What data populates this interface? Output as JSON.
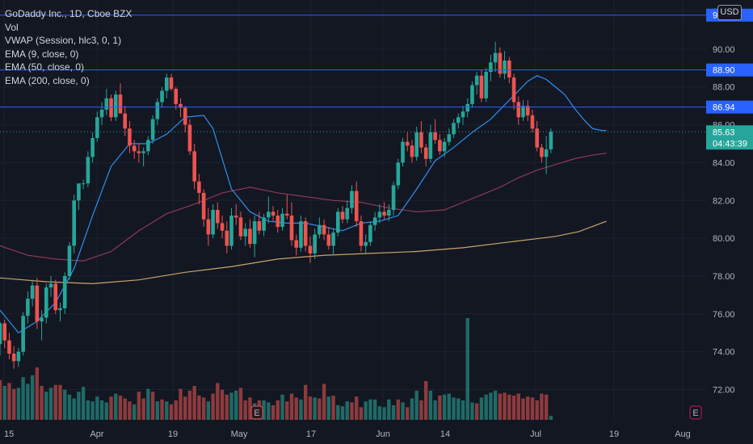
{
  "legend": {
    "symbol_line": "GoDaddy Inc., 1D, Cboe BZX",
    "vol": "Vol",
    "vwap": "VWAP (Session, hlc3, 0, 1)",
    "ema9": "EMA (9, close, 0)",
    "ema50": "EMA (50, close, 0)",
    "ema200": "EMA (200, close, 0)"
  },
  "currency": "USD",
  "colors": {
    "background": "#131722",
    "up": "#26a69a",
    "down": "#ef5350",
    "vol_up": "#1f6a66",
    "vol_down": "#8e3a3d",
    "ema9": "#2f8ff0",
    "ema50": "#8b3a55",
    "ema200": "#c9a46a",
    "hline": "#2962ff",
    "price_tag": "#26a69a"
  },
  "chart_data": {
    "type": "candlestick",
    "ylim": [
      70.4,
      92.6
    ],
    "y_ticks": [
      "72.00",
      "74.00",
      "76.00",
      "78.00",
      "80.00",
      "82.00",
      "84.00",
      "86.00",
      "88.00",
      "90.00",
      "92.00"
    ],
    "x_ticks": [
      "15",
      "Apr",
      "19",
      "May",
      "17",
      "Jun",
      "14",
      "Jul",
      "19",
      "Aug"
    ],
    "horizontal_lines": [
      {
        "label": "91.80",
        "value": 91.8
      },
      {
        "label": "88.90",
        "value": 88.9
      },
      {
        "label": "86.94",
        "value": 86.94
      }
    ],
    "last_price": {
      "label": "85.63",
      "value": 85.63,
      "countdown": "04:43:39"
    },
    "earnings_markers": [
      {
        "label": "E",
        "index": 43
      },
      {
        "label": "E",
        "index": 119
      }
    ],
    "candles": [
      [
        74.4,
        75.6,
        73.8,
        75.5
      ],
      [
        75.5,
        75.7,
        74.2,
        74.6
      ],
      [
        74.6,
        75.0,
        73.6,
        73.9
      ],
      [
        73.9,
        74.3,
        73.1,
        73.5
      ],
      [
        73.5,
        74.2,
        73.2,
        74.0
      ],
      [
        74.0,
        76.1,
        73.8,
        75.9
      ],
      [
        75.9,
        77.2,
        75.5,
        76.8
      ],
      [
        76.8,
        77.8,
        76.4,
        77.5
      ],
      [
        77.5,
        77.9,
        75.2,
        75.6
      ],
      [
        75.6,
        76.2,
        74.6,
        75.8
      ],
      [
        75.8,
        77.6,
        75.5,
        77.4
      ],
      [
        77.4,
        78.0,
        76.9,
        77.6
      ],
      [
        77.6,
        77.8,
        76.0,
        76.2
      ],
      [
        76.2,
        76.6,
        75.6,
        76.3
      ],
      [
        76.3,
        78.2,
        76.0,
        78.0
      ],
      [
        78.0,
        79.8,
        77.8,
        79.6
      ],
      [
        79.6,
        82.3,
        79.2,
        82.0
      ],
      [
        82.0,
        82.8,
        81.5,
        82.9
      ],
      [
        82.9,
        83.1,
        82.6,
        82.9
      ],
      [
        82.9,
        84.6,
        82.7,
        84.3
      ],
      [
        84.3,
        85.6,
        84.0,
        85.3
      ],
      [
        85.3,
        86.7,
        85.1,
        86.4
      ],
      [
        86.4,
        87.2,
        86.0,
        86.8
      ],
      [
        86.8,
        87.9,
        86.5,
        87.4
      ],
      [
        87.4,
        87.6,
        86.2,
        86.4
      ],
      [
        86.4,
        87.8,
        86.2,
        87.6
      ],
      [
        87.6,
        88.2,
        86.8,
        86.6
      ],
      [
        86.6,
        87.0,
        85.4,
        85.8
      ],
      [
        85.8,
        86.2,
        84.5,
        84.9
      ],
      [
        84.9,
        85.2,
        84.2,
        84.6
      ],
      [
        84.6,
        85.0,
        84.0,
        84.5
      ],
      [
        84.5,
        84.8,
        83.8,
        84.6
      ],
      [
        84.6,
        85.4,
        84.4,
        85.2
      ],
      [
        85.2,
        86.5,
        85.0,
        86.3
      ],
      [
        86.3,
        87.4,
        86.0,
        87.2
      ],
      [
        87.2,
        88.0,
        86.9,
        87.8
      ],
      [
        87.8,
        88.7,
        87.4,
        88.5
      ],
      [
        88.5,
        88.7,
        87.8,
        87.9
      ],
      [
        87.9,
        88.0,
        86.8,
        87.1
      ],
      [
        87.1,
        87.4,
        86.4,
        86.9
      ],
      [
        86.9,
        87.0,
        85.6,
        86.0
      ],
      [
        86.0,
        86.3,
        84.4,
        84.6
      ],
      [
        84.6,
        85.0,
        82.6,
        83.0
      ],
      [
        83.0,
        83.4,
        81.8,
        82.4
      ],
      [
        82.4,
        82.6,
        80.6,
        81.0
      ],
      [
        81.0,
        81.6,
        79.6,
        80.2
      ],
      [
        80.2,
        81.8,
        80.0,
        81.5
      ],
      [
        81.5,
        81.9,
        80.5,
        80.8
      ],
      [
        80.8,
        81.2,
        80.0,
        80.4
      ],
      [
        80.4,
        80.9,
        79.2,
        79.6
      ],
      [
        79.6,
        81.6,
        79.4,
        81.2
      ],
      [
        81.2,
        81.8,
        80.7,
        81.1
      ],
      [
        81.1,
        81.4,
        79.9,
        80.1
      ],
      [
        80.1,
        80.8,
        79.6,
        80.5
      ],
      [
        80.5,
        81.0,
        79.5,
        79.7
      ],
      [
        79.7,
        81.2,
        79.0,
        80.9
      ],
      [
        80.9,
        81.4,
        80.2,
        80.4
      ],
      [
        80.4,
        81.3,
        80.1,
        81.1
      ],
      [
        81.1,
        82.2,
        80.8,
        81.4
      ],
      [
        81.4,
        81.7,
        80.9,
        81.2
      ],
      [
        81.2,
        81.5,
        80.3,
        80.6
      ],
      [
        80.6,
        81.6,
        80.4,
        81.3
      ],
      [
        81.3,
        82.3,
        81.0,
        81.2
      ],
      [
        81.2,
        81.9,
        79.6,
        79.9
      ],
      [
        79.9,
        80.2,
        79.1,
        79.5
      ],
      [
        79.5,
        81.2,
        79.3,
        80.9
      ],
      [
        80.9,
        81.1,
        79.3,
        79.6
      ],
      [
        79.6,
        80.1,
        78.7,
        79.2
      ],
      [
        79.2,
        80.5,
        78.9,
        80.2
      ],
      [
        80.2,
        81.1,
        80.0,
        80.7
      ],
      [
        80.7,
        81.0,
        79.9,
        80.2
      ],
      [
        80.2,
        80.6,
        79.4,
        79.6
      ],
      [
        79.6,
        80.5,
        79.1,
        80.3
      ],
      [
        80.3,
        81.6,
        80.1,
        81.4
      ],
      [
        81.4,
        81.7,
        80.8,
        81.0
      ],
      [
        81.0,
        82.0,
        80.8,
        81.6
      ],
      [
        81.6,
        82.8,
        81.3,
        82.5
      ],
      [
        82.5,
        83.0,
        80.6,
        80.9
      ],
      [
        80.9,
        81.2,
        79.3,
        79.6
      ],
      [
        79.6,
        80.2,
        79.2,
        79.8
      ],
      [
        79.8,
        80.9,
        79.6,
        80.7
      ],
      [
        80.7,
        81.4,
        80.4,
        81.1
      ],
      [
        81.1,
        81.8,
        80.8,
        81.4
      ],
      [
        81.4,
        81.9,
        81.0,
        81.2
      ],
      [
        81.2,
        81.8,
        80.9,
        81.5
      ],
      [
        81.5,
        83.0,
        81.2,
        82.8
      ],
      [
        82.8,
        84.2,
        82.6,
        84.0
      ],
      [
        84.0,
        85.3,
        83.8,
        85.1
      ],
      [
        85.1,
        85.6,
        84.6,
        84.9
      ],
      [
        84.9,
        85.2,
        84.0,
        84.3
      ],
      [
        84.3,
        85.9,
        84.1,
        85.6
      ],
      [
        85.6,
        86.2,
        84.5,
        84.8
      ],
      [
        84.8,
        85.0,
        83.8,
        84.2
      ],
      [
        84.2,
        86.0,
        84.0,
        85.6
      ],
      [
        85.6,
        86.3,
        85.0,
        85.2
      ],
      [
        85.2,
        85.5,
        84.4,
        84.6
      ],
      [
        84.6,
        85.3,
        84.3,
        85.1
      ],
      [
        85.1,
        85.8,
        84.9,
        85.5
      ],
      [
        85.5,
        86.3,
        85.3,
        86.1
      ],
      [
        86.1,
        86.6,
        85.8,
        86.4
      ],
      [
        86.4,
        87.0,
        86.0,
        86.7
      ],
      [
        86.7,
        87.4,
        86.4,
        87.1
      ],
      [
        87.1,
        88.3,
        86.9,
        88.1
      ],
      [
        88.1,
        88.8,
        87.6,
        88.6
      ],
      [
        88.6,
        88.9,
        87.2,
        87.4
      ],
      [
        87.4,
        89.0,
        87.2,
        88.8
      ],
      [
        88.8,
        89.7,
        88.3,
        89.3
      ],
      [
        89.3,
        90.4,
        88.8,
        89.8
      ],
      [
        89.8,
        90.1,
        88.5,
        88.7
      ],
      [
        88.7,
        89.9,
        88.4,
        89.4
      ],
      [
        89.4,
        89.6,
        88.2,
        88.5
      ],
      [
        88.5,
        88.7,
        86.8,
        87.2
      ],
      [
        87.2,
        87.5,
        86.0,
        86.4
      ],
      [
        86.4,
        87.3,
        86.2,
        87.0
      ],
      [
        87.0,
        87.3,
        86.2,
        86.5
      ],
      [
        86.5,
        86.8,
        85.6,
        85.8
      ],
      [
        85.8,
        86.2,
        84.6,
        84.8
      ],
      [
        84.8,
        85.0,
        84.0,
        84.3
      ],
      [
        84.3,
        85.4,
        83.4,
        84.7
      ],
      [
        84.7,
        85.8,
        84.5,
        85.63
      ]
    ],
    "volume": [
      [
        41,
        0
      ],
      [
        35,
        1
      ],
      [
        38,
        0
      ],
      [
        32,
        0
      ],
      [
        33,
        1
      ],
      [
        44,
        1
      ],
      [
        37,
        1
      ],
      [
        46,
        1
      ],
      [
        54,
        0
      ],
      [
        35,
        0
      ],
      [
        29,
        1
      ],
      [
        33,
        1
      ],
      [
        36,
        0
      ],
      [
        36,
        0
      ],
      [
        31,
        1
      ],
      [
        26,
        1
      ],
      [
        22,
        1
      ],
      [
        29,
        1
      ],
      [
        34,
        1
      ],
      [
        20,
        1
      ],
      [
        19,
        1
      ],
      [
        24,
        1
      ],
      [
        20,
        1
      ],
      [
        18,
        1
      ],
      [
        24,
        0
      ],
      [
        27,
        1
      ],
      [
        25,
        0
      ],
      [
        22,
        0
      ],
      [
        19,
        0
      ],
      [
        16,
        1
      ],
      [
        29,
        0
      ],
      [
        22,
        0
      ],
      [
        32,
        1
      ],
      [
        29,
        0
      ],
      [
        19,
        1
      ],
      [
        21,
        0
      ],
      [
        19,
        1
      ],
      [
        16,
        0
      ],
      [
        20,
        0
      ],
      [
        32,
        0
      ],
      [
        24,
        0
      ],
      [
        30,
        0
      ],
      [
        35,
        0
      ],
      [
        25,
        0
      ],
      [
        23,
        0
      ],
      [
        19,
        1
      ],
      [
        27,
        0
      ],
      [
        38,
        0
      ],
      [
        31,
        0
      ],
      [
        26,
        0
      ],
      [
        28,
        1
      ],
      [
        30,
        1
      ],
      [
        33,
        0
      ],
      [
        20,
        0
      ],
      [
        23,
        0
      ],
      [
        17,
        1
      ],
      [
        20,
        0
      ],
      [
        20,
        1
      ],
      [
        18,
        1
      ],
      [
        15,
        0
      ],
      [
        20,
        0
      ],
      [
        26,
        1
      ],
      [
        19,
        0
      ],
      [
        27,
        0
      ],
      [
        23,
        0
      ],
      [
        21,
        1
      ],
      [
        36,
        0
      ],
      [
        24,
        0
      ],
      [
        23,
        1
      ],
      [
        22,
        0
      ],
      [
        37,
        0
      ],
      [
        24,
        1
      ],
      [
        25,
        0
      ],
      [
        15,
        1
      ],
      [
        14,
        1
      ],
      [
        19,
        1
      ],
      [
        18,
        0
      ],
      [
        24,
        0
      ],
      [
        13,
        0
      ],
      [
        19,
        1
      ],
      [
        21,
        1
      ],
      [
        21,
        1
      ],
      [
        14,
        1
      ],
      [
        13,
        1
      ],
      [
        21,
        1
      ],
      [
        15,
        1
      ],
      [
        21,
        0
      ],
      [
        18,
        1
      ],
      [
        13,
        0
      ],
      [
        22,
        1
      ],
      [
        30,
        1
      ],
      [
        20,
        0
      ],
      [
        40,
        0
      ],
      [
        30,
        1
      ],
      [
        20,
        1
      ],
      [
        25,
        0
      ],
      [
        26,
        1
      ],
      [
        27,
        1
      ],
      [
        23,
        1
      ],
      [
        22,
        1
      ],
      [
        20,
        1
      ],
      [
        105,
        1
      ],
      [
        18,
        1
      ],
      [
        17,
        0
      ],
      [
        23,
        1
      ],
      [
        26,
        1
      ],
      [
        28,
        1
      ],
      [
        30,
        1
      ],
      [
        27,
        0
      ],
      [
        28,
        0
      ],
      [
        26,
        0
      ],
      [
        25,
        0
      ],
      [
        27,
        0
      ],
      [
        22,
        0
      ],
      [
        24,
        0
      ],
      [
        23,
        0
      ],
      [
        20,
        0
      ],
      [
        27,
        0
      ],
      [
        26,
        0
      ],
      [
        4,
        1
      ]
    ],
    "ema9": [
      [
        0,
        76.2
      ],
      [
        4,
        75.0
      ],
      [
        8,
        75.6
      ],
      [
        12,
        76.6
      ],
      [
        16,
        78.4
      ],
      [
        20,
        81.2
      ],
      [
        24,
        83.8
      ],
      [
        28,
        85.0
      ],
      [
        32,
        85.0
      ],
      [
        36,
        85.5
      ],
      [
        40,
        86.4
      ],
      [
        44,
        86.5
      ],
      [
        46,
        85.8
      ],
      [
        48,
        84.2
      ],
      [
        50,
        82.6
      ],
      [
        54,
        81.4
      ],
      [
        58,
        80.9
      ],
      [
        62,
        80.8
      ],
      [
        66,
        80.8
      ],
      [
        70,
        80.6
      ],
      [
        74,
        80.4
      ],
      [
        78,
        80.8
      ],
      [
        82,
        80.9
      ],
      [
        86,
        81.2
      ],
      [
        90,
        82.6
      ],
      [
        94,
        84.1
      ],
      [
        98,
        84.8
      ],
      [
        102,
        85.6
      ],
      [
        106,
        86.3
      ],
      [
        110,
        87.3
      ],
      [
        114,
        88.3
      ],
      [
        116,
        88.6
      ],
      [
        118,
        88.4
      ],
      [
        120,
        88.0
      ],
      [
        122,
        87.6
      ],
      [
        124,
        86.9
      ],
      [
        126,
        86.3
      ],
      [
        128,
        85.8
      ],
      [
        130,
        85.7
      ],
      [
        131,
        85.7
      ]
    ],
    "ema50": [
      [
        0,
        79.6
      ],
      [
        6,
        79.1
      ],
      [
        12,
        78.9
      ],
      [
        18,
        78.8
      ],
      [
        24,
        79.3
      ],
      [
        30,
        80.4
      ],
      [
        36,
        81.3
      ],
      [
        42,
        81.8
      ],
      [
        48,
        82.4
      ],
      [
        54,
        82.7
      ],
      [
        60,
        82.4
      ],
      [
        66,
        82.2
      ],
      [
        72,
        82.0
      ],
      [
        78,
        81.9
      ],
      [
        84,
        81.6
      ],
      [
        90,
        81.4
      ],
      [
        96,
        81.5
      ],
      [
        100,
        81.9
      ],
      [
        104,
        82.3
      ],
      [
        108,
        82.7
      ],
      [
        112,
        83.2
      ],
      [
        116,
        83.6
      ],
      [
        120,
        83.9
      ],
      [
        124,
        84.2
      ],
      [
        128,
        84.4
      ],
      [
        131,
        84.5
      ]
    ],
    "ema200": [
      [
        0,
        77.9
      ],
      [
        10,
        77.7
      ],
      [
        20,
        77.6
      ],
      [
        30,
        77.8
      ],
      [
        40,
        78.2
      ],
      [
        50,
        78.5
      ],
      [
        60,
        78.9
      ],
      [
        70,
        79.1
      ],
      [
        80,
        79.2
      ],
      [
        90,
        79.3
      ],
      [
        100,
        79.5
      ],
      [
        110,
        79.8
      ],
      [
        120,
        80.1
      ],
      [
        125,
        80.35
      ],
      [
        131,
        80.9
      ]
    ]
  }
}
